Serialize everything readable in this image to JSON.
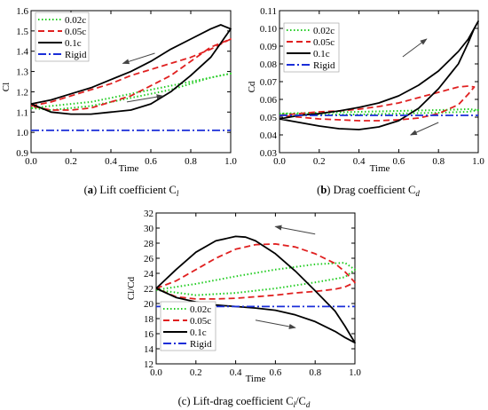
{
  "chart_data": [
    {
      "type": "line",
      "caption_letter": "a",
      "caption_text": "Lift coefficient C",
      "caption_sub": "l",
      "xlabel": "Time",
      "ylabel": "Cl",
      "xlim": [
        0.0,
        1.0
      ],
      "ylim": [
        0.9,
        1.6
      ],
      "xticks": [
        "0.0",
        "0.2",
        "0.4",
        "0.6",
        "0.8",
        "1.0"
      ],
      "yticks": [
        "0.9",
        "1.0",
        "1.1",
        "1.2",
        "1.3",
        "1.4",
        "1.5",
        "1.6"
      ],
      "legend_position": "top-left",
      "series": [
        {
          "name": "0.02c",
          "style": "dotted",
          "color": "#22cc22",
          "x": [
            0.0,
            0.1,
            0.2,
            0.3,
            0.4,
            0.5,
            0.6,
            0.7,
            0.8,
            0.9,
            1.0,
            0.9,
            0.8,
            0.7,
            0.6,
            0.5,
            0.4,
            0.3,
            0.2,
            0.1,
            0.0
          ],
          "y": [
            1.12,
            1.13,
            1.14,
            1.15,
            1.17,
            1.19,
            1.21,
            1.23,
            1.25,
            1.27,
            1.29,
            1.27,
            1.24,
            1.21,
            1.19,
            1.17,
            1.15,
            1.13,
            1.12,
            1.11,
            1.12
          ]
        },
        {
          "name": "0.05c",
          "style": "dashed",
          "color": "#e02020",
          "x": [
            0.0,
            0.1,
            0.2,
            0.3,
            0.4,
            0.5,
            0.6,
            0.7,
            0.8,
            0.9,
            1.0,
            0.9,
            0.8,
            0.7,
            0.6,
            0.5,
            0.4,
            0.3,
            0.2,
            0.1,
            0.0
          ],
          "y": [
            1.13,
            1.15,
            1.18,
            1.21,
            1.24,
            1.28,
            1.31,
            1.34,
            1.37,
            1.41,
            1.46,
            1.42,
            1.35,
            1.28,
            1.23,
            1.18,
            1.15,
            1.12,
            1.11,
            1.11,
            1.13
          ]
        },
        {
          "name": "0.1c",
          "style": "solid",
          "color": "#000000",
          "x": [
            0.0,
            0.1,
            0.2,
            0.3,
            0.4,
            0.5,
            0.6,
            0.7,
            0.8,
            0.9,
            0.95,
            1.0,
            0.95,
            0.9,
            0.8,
            0.7,
            0.6,
            0.5,
            0.4,
            0.3,
            0.2,
            0.1,
            0.0
          ],
          "y": [
            1.14,
            1.16,
            1.19,
            1.22,
            1.26,
            1.3,
            1.35,
            1.41,
            1.46,
            1.51,
            1.53,
            1.51,
            1.44,
            1.37,
            1.28,
            1.2,
            1.14,
            1.11,
            1.1,
            1.09,
            1.09,
            1.1,
            1.14
          ]
        },
        {
          "name": "Rigid",
          "style": "dashdot",
          "color": "#1a2ed8",
          "x": [
            0.0,
            1.0
          ],
          "y": [
            1.01,
            1.01
          ]
        }
      ],
      "arrows": [
        {
          "x0": 0.62,
          "y0": 1.39,
          "x1": 0.46,
          "y1": 1.34
        },
        {
          "x0": 0.48,
          "y0": 1.15,
          "x1": 0.66,
          "y1": 1.18
        }
      ]
    },
    {
      "type": "line",
      "caption_letter": "b",
      "caption_text": "Drag coefficient C",
      "caption_sub": "d",
      "xlabel": "Time",
      "ylabel": "Cd",
      "xlim": [
        0.0,
        1.0
      ],
      "ylim": [
        0.03,
        0.11
      ],
      "xticks": [
        "0.0",
        "0.2",
        "0.4",
        "0.6",
        "0.8",
        "1.0"
      ],
      "yticks": [
        "0.03",
        "0.04",
        "0.05",
        "0.06",
        "0.07",
        "0.08",
        "0.09",
        "0.10",
        "0.11"
      ],
      "legend_position": "top-left",
      "series": [
        {
          "name": "0.02c",
          "style": "dotted",
          "color": "#22cc22",
          "x": [
            0.0,
            0.2,
            0.4,
            0.6,
            0.8,
            0.95,
            1.0,
            0.95,
            0.8,
            0.6,
            0.4,
            0.2,
            0.0
          ],
          "y": [
            0.052,
            0.0525,
            0.053,
            0.0535,
            0.054,
            0.0545,
            0.054,
            0.053,
            0.0525,
            0.052,
            0.0515,
            0.0515,
            0.052
          ]
        },
        {
          "name": "0.05c",
          "style": "dashed",
          "color": "#e02020",
          "x": [
            0.0,
            0.1,
            0.2,
            0.3,
            0.4,
            0.5,
            0.6,
            0.7,
            0.8,
            0.9,
            0.95,
            0.98,
            0.95,
            0.9,
            0.8,
            0.7,
            0.6,
            0.5,
            0.4,
            0.3,
            0.2,
            0.1,
            0.0
          ],
          "y": [
            0.051,
            0.052,
            0.053,
            0.0535,
            0.0545,
            0.056,
            0.058,
            0.061,
            0.064,
            0.067,
            0.0675,
            0.067,
            0.063,
            0.057,
            0.052,
            0.0495,
            0.0485,
            0.048,
            0.048,
            0.0485,
            0.049,
            0.05,
            0.051
          ]
        },
        {
          "name": "0.1c",
          "style": "solid",
          "color": "#000000",
          "x": [
            0.0,
            0.1,
            0.2,
            0.3,
            0.4,
            0.5,
            0.6,
            0.7,
            0.8,
            0.9,
            0.95,
            1.0,
            0.98,
            0.95,
            0.9,
            0.8,
            0.7,
            0.6,
            0.5,
            0.4,
            0.3,
            0.2,
            0.1,
            0.0
          ],
          "y": [
            0.049,
            0.051,
            0.052,
            0.0535,
            0.0555,
            0.058,
            0.062,
            0.068,
            0.076,
            0.087,
            0.094,
            0.104,
            0.1,
            0.092,
            0.08,
            0.066,
            0.055,
            0.048,
            0.0445,
            0.043,
            0.0435,
            0.045,
            0.047,
            0.049
          ]
        },
        {
          "name": "Rigid",
          "style": "dashdot",
          "color": "#1a2ed8",
          "x": [
            0.0,
            1.0
          ],
          "y": [
            0.051,
            0.051
          ]
        }
      ],
      "arrows": [
        {
          "x0": 0.62,
          "y0": 0.084,
          "x1": 0.74,
          "y1": 0.094
        },
        {
          "x0": 0.8,
          "y0": 0.047,
          "x1": 0.66,
          "y1": 0.04
        }
      ]
    },
    {
      "type": "line",
      "caption_letter": "c",
      "caption_text": "Lift-drag coefficient C",
      "caption_sub1": "l",
      "caption_mid": "/C",
      "caption_sub2": "d",
      "xlabel": "Time",
      "ylabel": "Cl/Cd",
      "xlim": [
        0.0,
        1.0
      ],
      "ylim": [
        12,
        32
      ],
      "xticks": [
        "0.0",
        "0.2",
        "0.4",
        "0.6",
        "0.8",
        "1.0"
      ],
      "yticks": [
        "12",
        "14",
        "16",
        "18",
        "20",
        "22",
        "24",
        "26",
        "28",
        "30",
        "32"
      ],
      "legend_position": "bottom-left",
      "series": [
        {
          "name": "0.02c",
          "style": "dotted",
          "color": "#22cc22",
          "x": [
            0.0,
            0.2,
            0.4,
            0.6,
            0.8,
            0.95,
            1.0,
            0.95,
            0.8,
            0.6,
            0.4,
            0.2,
            0.0
          ],
          "y": [
            21.8,
            22.6,
            23.6,
            24.5,
            25.2,
            25.4,
            24.5,
            23.5,
            22.8,
            22.0,
            21.4,
            21.1,
            21.8
          ]
        },
        {
          "name": "0.05c",
          "style": "dashed",
          "color": "#e02020",
          "x": [
            0.0,
            0.1,
            0.2,
            0.3,
            0.4,
            0.5,
            0.6,
            0.7,
            0.8,
            0.9,
            0.95,
            1.0,
            0.95,
            0.9,
            0.8,
            0.7,
            0.6,
            0.5,
            0.4,
            0.3,
            0.2,
            0.1,
            0.0
          ],
          "y": [
            22.0,
            23.0,
            24.5,
            26.0,
            27.2,
            27.8,
            27.9,
            27.5,
            26.6,
            25.3,
            24.2,
            22.8,
            22.2,
            21.9,
            21.6,
            21.4,
            21.1,
            20.9,
            20.7,
            20.6,
            20.6,
            20.9,
            22.0
          ]
        },
        {
          "name": "0.1c",
          "style": "solid",
          "color": "#000000",
          "x": [
            0.0,
            0.1,
            0.2,
            0.3,
            0.4,
            0.45,
            0.5,
            0.6,
            0.7,
            0.8,
            0.9,
            0.95,
            1.0,
            0.95,
            0.9,
            0.8,
            0.7,
            0.6,
            0.5,
            0.4,
            0.3,
            0.2,
            0.1,
            0.0
          ],
          "y": [
            22.0,
            24.5,
            26.8,
            28.3,
            28.9,
            28.8,
            28.3,
            26.6,
            24.3,
            21.7,
            19.0,
            17.0,
            14.8,
            15.5,
            16.3,
            17.6,
            18.5,
            19.1,
            19.4,
            19.6,
            19.8,
            20.2,
            20.8,
            22.0
          ]
        },
        {
          "name": "Rigid",
          "style": "dashdot",
          "color": "#1a2ed8",
          "x": [
            0.0,
            1.0
          ],
          "y": [
            19.6,
            19.6
          ]
        }
      ],
      "arrows": [
        {
          "x0": 0.8,
          "y0": 29.2,
          "x1": 0.6,
          "y1": 30.2
        },
        {
          "x0": 0.5,
          "y0": 17.8,
          "x1": 0.7,
          "y1": 16.8
        }
      ]
    }
  ]
}
